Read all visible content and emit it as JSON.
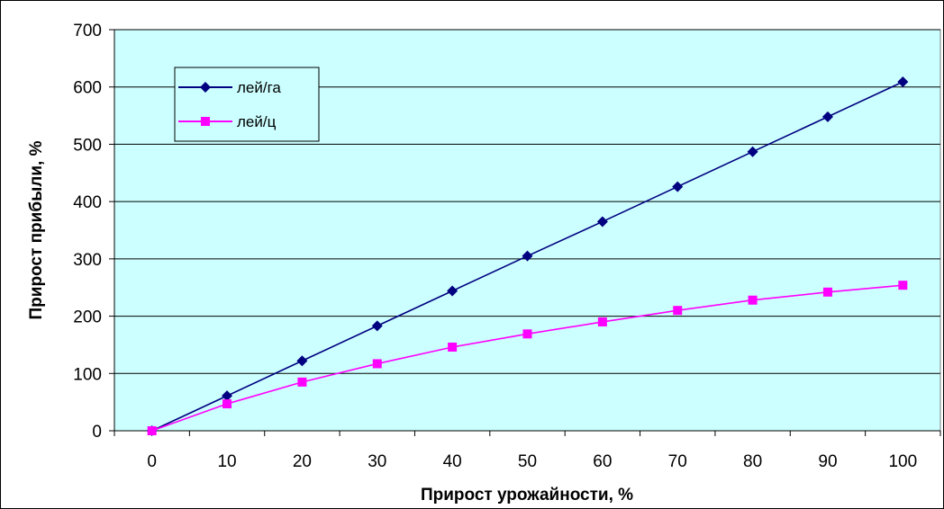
{
  "chart_data": {
    "type": "line",
    "xlabel": "Прирост урожайности, %",
    "ylabel": "Прирост прибыли, %",
    "categories": [
      "0",
      "10",
      "20",
      "30",
      "40",
      "50",
      "60",
      "70",
      "80",
      "90",
      "100"
    ],
    "ylim": [
      0,
      700
    ],
    "yticks": [
      0,
      100,
      200,
      300,
      400,
      500,
      600,
      700
    ],
    "grid": "horizontal",
    "legend_position": "top-left",
    "plot_background": "#CCFFFF",
    "series": [
      {
        "name": "лей/га",
        "color": "#000080",
        "marker": "diamond",
        "values": [
          0,
          61,
          122,
          183,
          244,
          305,
          365,
          426,
          487,
          548,
          609
        ]
      },
      {
        "name": "лей/ц",
        "color": "#FF00FF",
        "marker": "square",
        "values": [
          0,
          47,
          85,
          117,
          146,
          169,
          190,
          210,
          228,
          242,
          254
        ]
      }
    ]
  }
}
